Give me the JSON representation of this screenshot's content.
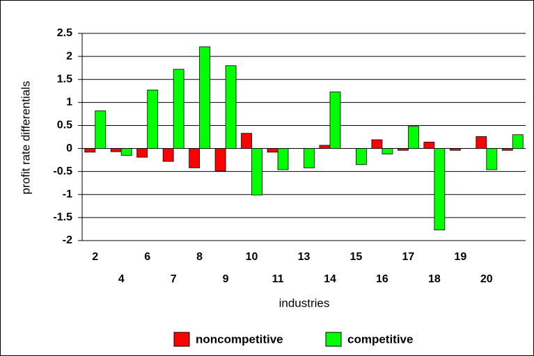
{
  "chart_data": {
    "type": "bar",
    "x_label": "industries",
    "y_label": "profit rate differentials",
    "categories": [
      "2",
      "4",
      "6",
      "7",
      "8",
      "9",
      "10",
      "11",
      "13",
      "14",
      "15",
      "16",
      "17",
      "18",
      "19",
      "20",
      null
    ],
    "series": [
      {
        "name": "noncompetitive",
        "color": "#ff0000",
        "values": [
          -0.08,
          -0.07,
          -0.19,
          -0.28,
          -0.42,
          -0.49,
          0.33,
          -0.08,
          0,
          0.07,
          0,
          0.19,
          -0.04,
          0.14,
          -0.04,
          0.26,
          -0.04
        ]
      },
      {
        "name": "competitive",
        "color": "#00ff00",
        "values": [
          0.82,
          -0.15,
          1.27,
          1.72,
          2.21,
          1.8,
          -1.01,
          -0.46,
          -0.42,
          1.23,
          -0.35,
          -0.12,
          0.48,
          -1.77,
          0,
          -0.46,
          0.3
        ]
      }
    ],
    "ylim": [
      -2,
      2.5
    ],
    "yticks": [
      2.5,
      2,
      1.5,
      1,
      0.5,
      0,
      -0.5,
      -1,
      -1.5,
      -2
    ],
    "grid": true,
    "legend": "bottom"
  }
}
